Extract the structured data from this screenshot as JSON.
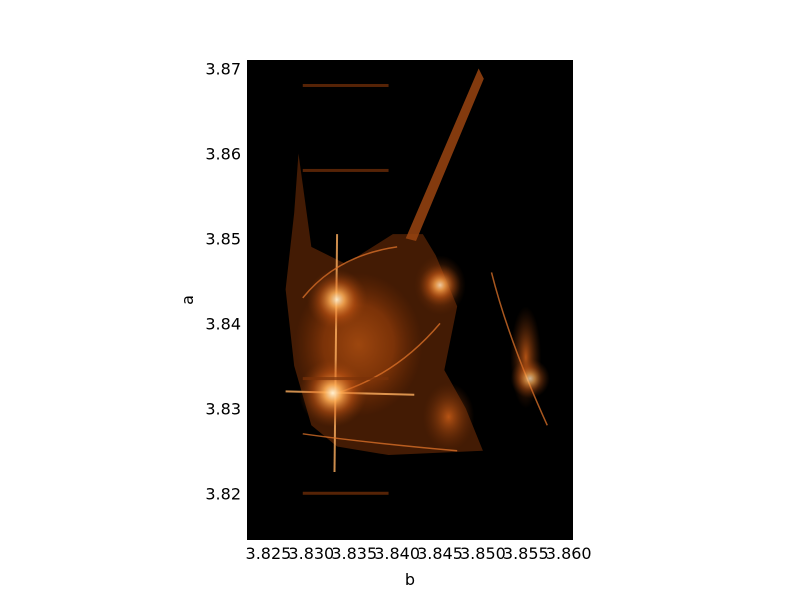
{
  "chart_data": {
    "type": "heatmap",
    "title": "",
    "xlabel": "b",
    "ylabel": "a",
    "xlim": [
      3.8225,
      3.8605
    ],
    "ylim": [
      3.8145,
      3.871
    ],
    "x_ticks": [
      {
        "value": 3.825,
        "label": "3.825"
      },
      {
        "value": 3.83,
        "label": "3.830"
      },
      {
        "value": 3.835,
        "label": "3.835"
      },
      {
        "value": 3.84,
        "label": "3.840"
      },
      {
        "value": 3.845,
        "label": "3.845"
      },
      {
        "value": 3.85,
        "label": "3.850"
      },
      {
        "value": 3.855,
        "label": "3.855"
      },
      {
        "value": 3.86,
        "label": "3.860"
      }
    ],
    "y_ticks": [
      {
        "value": 3.82,
        "label": "3.82"
      },
      {
        "value": 3.83,
        "label": "3.83"
      },
      {
        "value": 3.84,
        "label": "3.84"
      },
      {
        "value": 3.85,
        "label": "3.85"
      },
      {
        "value": 3.86,
        "label": "3.86"
      },
      {
        "value": 3.87,
        "label": "3.87"
      }
    ],
    "grid": false,
    "colormap": "afmhot-like (black to orange to white)",
    "background_color": "#000000",
    "colors": {
      "low": "#000000",
      "mid": "#8a3a0a",
      "high": "#e07020",
      "peak": "#ffd9a0"
    },
    "features": {
      "hot_spots": [
        {
          "b": 3.8325,
          "a": 3.8318,
          "intensity": 1.0
        },
        {
          "b": 3.833,
          "a": 3.8428,
          "intensity": 0.85
        },
        {
          "b": 3.845,
          "a": 3.8445,
          "intensity": 0.5
        },
        {
          "b": 3.8555,
          "a": 3.8335,
          "intensity": 0.45
        }
      ],
      "main_body": {
        "b_center": 3.8355,
        "a_center": 3.8375,
        "b_radius": 0.0075,
        "a_radius": 0.0085
      },
      "bright_lines": [
        {
          "name": "vertical-line",
          "b1": 3.8327,
          "a1": 3.8225,
          "b2": 3.833,
          "a2": 3.8505
        },
        {
          "name": "horizontal-line",
          "b1": 3.827,
          "a1": 3.832,
          "b2": 3.842,
          "a2": 3.8316
        }
      ],
      "diagonal_spike": {
        "b1": 3.841,
        "a1": 3.85,
        "b2": 3.8495,
        "a2": 3.87
      },
      "speckle_bands": [
        3.82,
        3.8335,
        3.858,
        3.868
      ]
    }
  }
}
